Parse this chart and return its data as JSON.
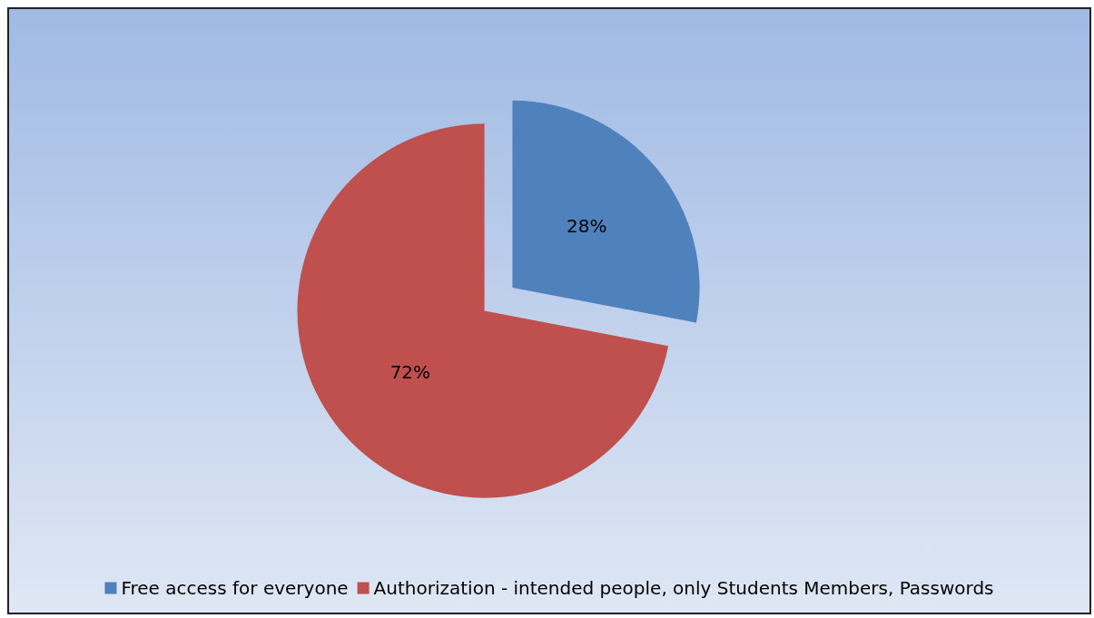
{
  "chart_data": {
    "type": "pie",
    "categories": [
      "Free access for everyone",
      "Authorization - intended people, only Students Members, Passwords"
    ],
    "values": [
      28,
      72
    ],
    "colors": [
      "#4f81bd",
      "#c0504d"
    ],
    "value_labels": [
      "28%",
      "72%"
    ],
    "legend": "bottom"
  }
}
